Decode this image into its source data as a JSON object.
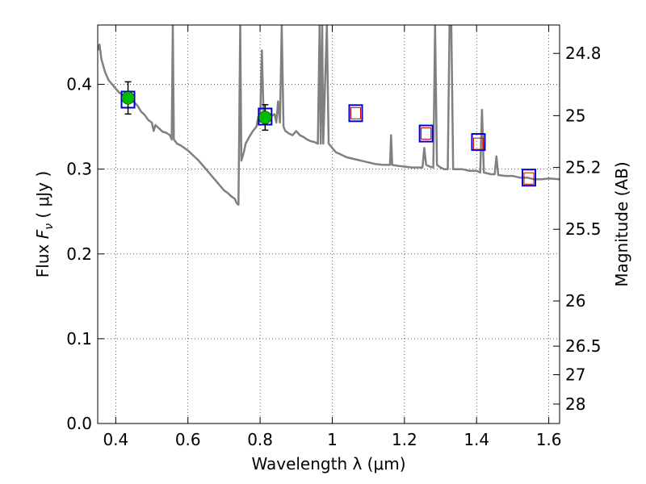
{
  "chart_data": {
    "type": "line",
    "xlabel": "Wavelength  λ (μm)",
    "ylabel": "Flux  F_ν  ( μJy )",
    "ylabel_parts": {
      "pre": "Flux ",
      "symbol": "F",
      "sub": "ν",
      "post": "  ( μJy )"
    },
    "ylabel_right": "Magnitude (AB)",
    "xlim": [
      0.35,
      1.63
    ],
    "ylim": [
      0.0,
      0.47
    ],
    "grid": true,
    "x_ticks": [
      0.4,
      0.6,
      0.8,
      1.0,
      1.2,
      1.4,
      1.6
    ],
    "x_tick_labels": [
      "0.4",
      "0.6",
      "0.8",
      "1",
      "1.2",
      "1.4",
      "1.6"
    ],
    "y_ticks": [
      0.0,
      0.1,
      0.2,
      0.3,
      0.4
    ],
    "y_tick_labels": [
      "0.0",
      "0.1",
      "0.2",
      "0.3",
      "0.4"
    ],
    "right_ticks": [
      24.8,
      25,
      25.2,
      25.5,
      26,
      26.5,
      27,
      28
    ],
    "right_tick_labels": [
      "24.8",
      "25",
      "25.2",
      "25.5",
      "26",
      "26.5",
      "27",
      "28"
    ],
    "model_spectrum": {
      "color": "#808080",
      "points": [
        [
          0.35,
          0.44
        ],
        [
          0.355,
          0.447
        ],
        [
          0.36,
          0.43
        ],
        [
          0.37,
          0.415
        ],
        [
          0.38,
          0.405
        ],
        [
          0.39,
          0.4
        ],
        [
          0.4,
          0.395
        ],
        [
          0.41,
          0.39
        ],
        [
          0.42,
          0.388
        ],
        [
          0.43,
          0.385
        ],
        [
          0.44,
          0.383
        ],
        [
          0.45,
          0.379
        ],
        [
          0.46,
          0.375
        ],
        [
          0.47,
          0.368
        ],
        [
          0.48,
          0.364
        ],
        [
          0.49,
          0.358
        ],
        [
          0.5,
          0.355
        ],
        [
          0.505,
          0.345
        ],
        [
          0.51,
          0.352
        ],
        [
          0.52,
          0.348
        ],
        [
          0.53,
          0.344
        ],
        [
          0.54,
          0.343
        ],
        [
          0.55,
          0.34
        ],
        [
          0.555,
          0.335
        ],
        [
          0.558,
          0.47
        ],
        [
          0.561,
          0.335
        ],
        [
          0.57,
          0.33
        ],
        [
          0.58,
          0.328
        ],
        [
          0.59,
          0.325
        ],
        [
          0.6,
          0.322
        ],
        [
          0.61,
          0.318
        ],
        [
          0.62,
          0.314
        ],
        [
          0.63,
          0.31
        ],
        [
          0.64,
          0.305
        ],
        [
          0.65,
          0.3
        ],
        [
          0.66,
          0.295
        ],
        [
          0.67,
          0.29
        ],
        [
          0.68,
          0.285
        ],
        [
          0.69,
          0.28
        ],
        [
          0.7,
          0.275
        ],
        [
          0.71,
          0.272
        ],
        [
          0.72,
          0.268
        ],
        [
          0.73,
          0.265
        ],
        [
          0.735,
          0.26
        ],
        [
          0.74,
          0.258
        ],
        [
          0.745,
          0.47
        ],
        [
          0.748,
          0.31
        ],
        [
          0.755,
          0.32
        ],
        [
          0.76,
          0.33
        ],
        [
          0.77,
          0.338
        ],
        [
          0.78,
          0.345
        ],
        [
          0.79,
          0.35
        ],
        [
          0.795,
          0.362
        ],
        [
          0.8,
          0.356
        ],
        [
          0.805,
          0.44
        ],
        [
          0.81,
          0.356
        ],
        [
          0.82,
          0.358
        ],
        [
          0.83,
          0.362
        ],
        [
          0.84,
          0.365
        ],
        [
          0.845,
          0.355
        ],
        [
          0.85,
          0.38
        ],
        [
          0.855,
          0.355
        ],
        [
          0.86,
          0.47
        ],
        [
          0.865,
          0.35
        ],
        [
          0.87,
          0.345
        ],
        [
          0.88,
          0.342
        ],
        [
          0.89,
          0.34
        ],
        [
          0.9,
          0.345
        ],
        [
          0.91,
          0.34
        ],
        [
          0.92,
          0.338
        ],
        [
          0.93,
          0.335
        ],
        [
          0.94,
          0.333
        ],
        [
          0.95,
          0.332
        ],
        [
          0.96,
          0.33
        ],
        [
          0.965,
          0.47
        ],
        [
          0.968,
          0.33
        ],
        [
          0.972,
          0.47
        ],
        [
          0.975,
          0.33
        ],
        [
          0.985,
          0.47
        ],
        [
          0.99,
          0.33
        ],
        [
          1.0,
          0.325
        ],
        [
          1.01,
          0.32
        ],
        [
          1.02,
          0.318
        ],
        [
          1.03,
          0.316
        ],
        [
          1.04,
          0.314
        ],
        [
          1.06,
          0.312
        ],
        [
          1.08,
          0.31
        ],
        [
          1.1,
          0.308
        ],
        [
          1.12,
          0.306
        ],
        [
          1.14,
          0.305
        ],
        [
          1.16,
          0.305
        ],
        [
          1.163,
          0.34
        ],
        [
          1.166,
          0.305
        ],
        [
          1.18,
          0.304
        ],
        [
          1.2,
          0.303
        ],
        [
          1.22,
          0.302
        ],
        [
          1.24,
          0.302
        ],
        [
          1.25,
          0.302
        ],
        [
          1.255,
          0.325
        ],
        [
          1.26,
          0.305
        ],
        [
          1.27,
          0.303
        ],
        [
          1.28,
          0.302
        ],
        [
          1.285,
          0.47
        ],
        [
          1.29,
          0.305
        ],
        [
          1.3,
          0.302
        ],
        [
          1.31,
          0.3
        ],
        [
          1.32,
          0.3
        ],
        [
          1.325,
          0.47
        ],
        [
          1.33,
          0.47
        ],
        [
          1.335,
          0.3
        ],
        [
          1.34,
          0.3
        ],
        [
          1.36,
          0.3
        ],
        [
          1.38,
          0.298
        ],
        [
          1.4,
          0.298
        ],
        [
          1.41,
          0.296
        ],
        [
          1.415,
          0.37
        ],
        [
          1.42,
          0.296
        ],
        [
          1.44,
          0.294
        ],
        [
          1.45,
          0.294
        ],
        [
          1.455,
          0.315
        ],
        [
          1.46,
          0.293
        ],
        [
          1.48,
          0.292
        ],
        [
          1.5,
          0.292
        ],
        [
          1.52,
          0.29
        ],
        [
          1.54,
          0.29
        ],
        [
          1.56,
          0.288
        ],
        [
          1.58,
          0.288
        ],
        [
          1.6,
          0.289
        ],
        [
          1.63,
          0.288
        ]
      ]
    },
    "model_photometry": {
      "edge_color": "#0000cc",
      "points": [
        [
          0.434,
          0.382
        ],
        [
          0.814,
          0.362
        ],
        [
          1.065,
          0.366
        ],
        [
          1.26,
          0.342
        ],
        [
          1.405,
          0.332
        ],
        [
          1.545,
          0.29
        ]
      ]
    },
    "upper_limits": {
      "edge_color": "#cc0000",
      "points": [
        [
          1.065,
          0.366
        ],
        [
          1.26,
          0.342
        ],
        [
          1.405,
          0.33
        ],
        [
          1.545,
          0.289
        ]
      ]
    },
    "observed": {
      "color": "#00bb00",
      "points": [
        {
          "x": 0.434,
          "y": 0.384,
          "yerr": 0.019
        },
        {
          "x": 0.814,
          "y": 0.361,
          "yerr": 0.015
        }
      ]
    }
  }
}
